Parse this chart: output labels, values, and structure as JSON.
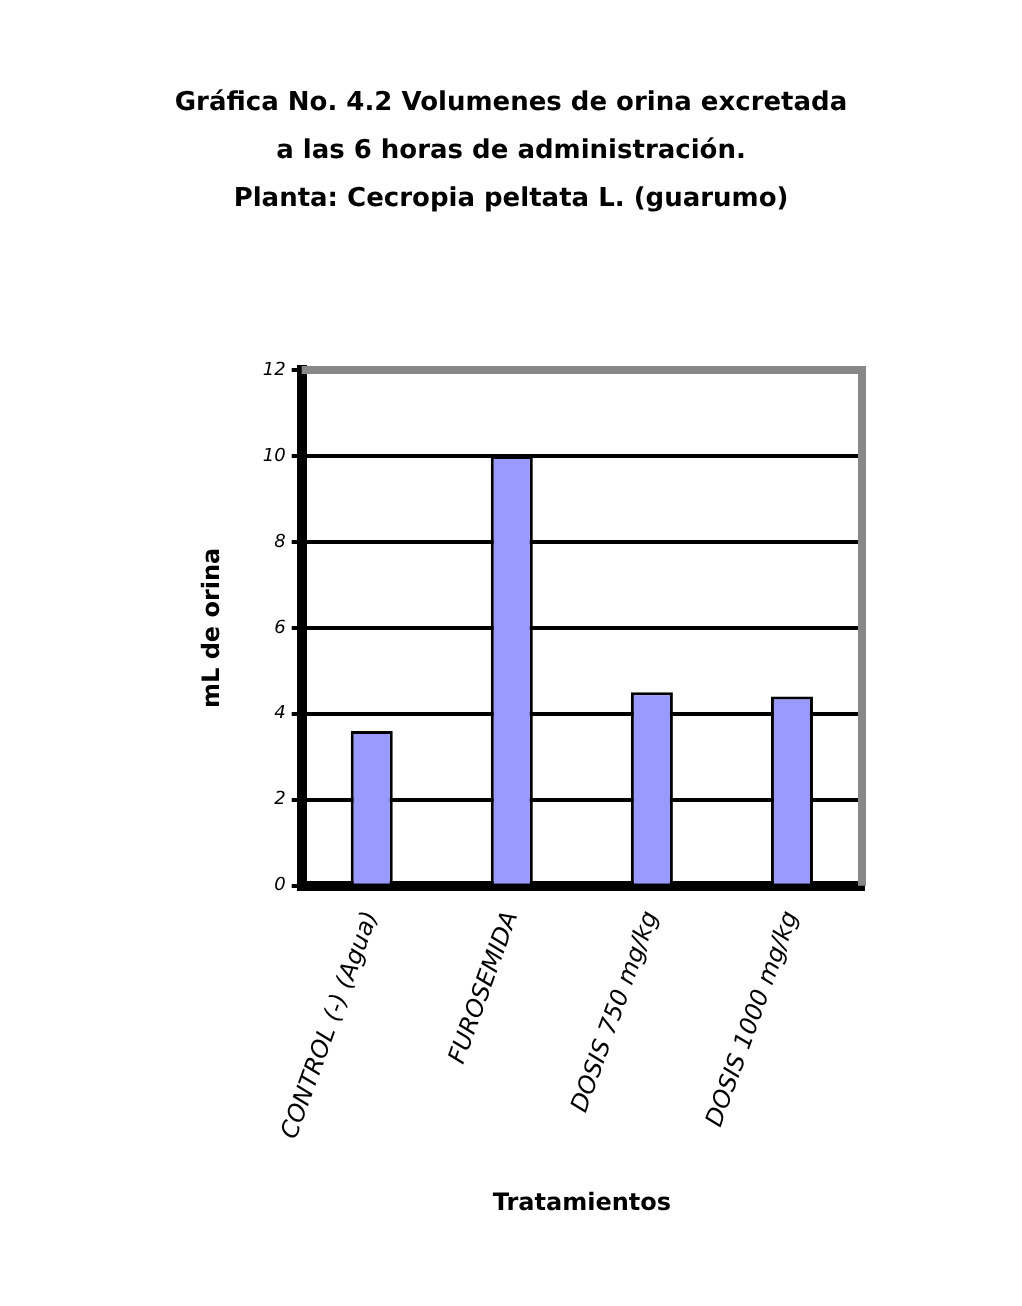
{
  "chart_data": {
    "type": "bar",
    "title": "Gráfica No. 4.2  Volumenes de orina excretada\na las 6 horas de administración.\nPlanta: Cecropia peltata L. (guarumo)",
    "xlabel": "Tratamientos",
    "ylabel": "mL de orina",
    "categories": [
      "CONTROL (-) (Agua)",
      "FUROSEMIDA",
      "DOSIS 750 mg/kg",
      "DOSIS 1000 mg/kg"
    ],
    "values": [
      3.6,
      10.0,
      4.5,
      4.4
    ],
    "color": "#9999ff",
    "ylim": [
      0,
      12
    ],
    "yticks": [
      0,
      2,
      4,
      6,
      8,
      10,
      12
    ],
    "grid": "y"
  }
}
